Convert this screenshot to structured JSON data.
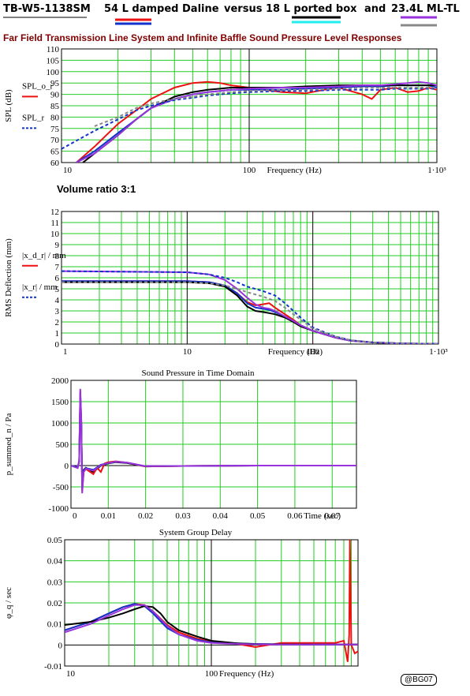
{
  "header": {
    "model": "TB-W5-1138SM",
    "legend": [
      {
        "label": "54 L damped Daline",
        "colors": [
          "#ee1111",
          "#1133cc"
        ]
      },
      {
        "label": "versus 18 L ported box",
        "colors": [
          "#000000",
          "#22eeee"
        ]
      },
      {
        "label": "and",
        "colors": []
      },
      {
        "label": "23.4L ML-TL",
        "colors": [
          "#9933dd",
          "#888888"
        ]
      }
    ]
  },
  "subtitle": "Far Field Transmission Line System and Infinite Baffle Sound Pressure Level Responses",
  "ratio_label": "Volume ratio 3:1",
  "credit": "@BG07",
  "chart_data": [
    {
      "type": "line",
      "name": "spl",
      "xscale": "log",
      "xlim": [
        10,
        1000
      ],
      "ylim": [
        60,
        110
      ],
      "xticks": [
        "10",
        "100",
        "1·10³"
      ],
      "yticks": [
        60,
        65,
        70,
        75,
        80,
        85,
        90,
        95,
        100,
        105,
        110
      ],
      "xlabel": "Frequency (Hz)",
      "ylabel": "SPL (dB)",
      "ylegend": [
        "SPL_o_r",
        "SPL_r"
      ],
      "series": [
        {
          "color": "#ee1111",
          "dash": "",
          "x": [
            12,
            15,
            20,
            25,
            30,
            40,
            50,
            60,
            70,
            80,
            100,
            120,
            150,
            200,
            250,
            300,
            400,
            450,
            500,
            600,
            700,
            800,
            900,
            1000
          ],
          "y": [
            60,
            67,
            77,
            83,
            88,
            93,
            95,
            95.5,
            95,
            94,
            93,
            92,
            91,
            90.5,
            92,
            93,
            90,
            88,
            92,
            93,
            91,
            91.5,
            93,
            92
          ]
        },
        {
          "color": "#1133cc",
          "dash": "",
          "x": [
            12,
            15,
            20,
            25,
            30,
            40,
            50,
            60,
            70,
            80,
            100,
            150,
            200,
            300,
            400,
            500,
            600,
            700,
            800,
            900,
            1000
          ],
          "y": [
            60,
            65,
            73,
            79,
            84,
            88,
            90,
            91,
            91.5,
            92,
            92,
            92,
            92.5,
            93,
            93.5,
            93.5,
            94,
            94,
            94,
            94,
            93
          ]
        },
        {
          "color": "#000000",
          "dash": "",
          "x": [
            13,
            15,
            20,
            25,
            30,
            40,
            50,
            60,
            70,
            80,
            100,
            150,
            200,
            300,
            400,
            500,
            600,
            700,
            800,
            900,
            1000
          ],
          "y": [
            60,
            64,
            72,
            79,
            84,
            89,
            91,
            92,
            92.5,
            93,
            93,
            93,
            93.5,
            94,
            94,
            94,
            94,
            94,
            94,
            94,
            94
          ]
        },
        {
          "color": "#9933dd",
          "dash": "",
          "x": [
            12,
            15,
            20,
            25,
            30,
            40,
            50,
            60,
            70,
            80,
            100,
            150,
            200,
            300,
            400,
            500,
            600,
            700,
            800,
            900,
            1000
          ],
          "y": [
            60,
            64,
            72,
            79,
            84,
            88,
            90,
            91,
            91.5,
            92,
            92.5,
            93,
            93,
            93.5,
            94,
            94,
            94.5,
            95,
            95.5,
            95,
            94
          ]
        },
        {
          "color": "#1133cc",
          "dash": "4,3",
          "x": [
            10,
            15,
            20,
            25,
            30,
            40,
            50,
            60,
            70,
            80,
            100,
            150,
            200,
            300,
            400,
            500,
            600,
            700,
            800,
            900,
            1000
          ],
          "y": [
            66,
            74,
            79,
            83,
            85,
            87.5,
            88.5,
            89.5,
            90,
            90.5,
            91,
            91.5,
            91.5,
            92,
            92,
            92,
            92.5,
            92.5,
            92.5,
            92.5,
            92.5
          ]
        },
        {
          "color": "#888888",
          "dash": "4,3",
          "x": [
            15,
            20,
            25,
            30,
            40,
            50,
            60,
            70,
            80,
            100,
            150,
            200,
            300,
            400,
            500,
            600,
            700,
            800,
            900,
            1000
          ],
          "y": [
            76,
            80,
            84,
            86,
            88,
            89,
            90,
            90.5,
            91,
            91.5,
            92,
            92,
            92.5,
            93,
            93,
            93,
            93,
            93,
            93,
            93
          ]
        }
      ]
    },
    {
      "type": "line",
      "name": "deflection",
      "xscale": "log",
      "xlim": [
        1,
        1000
      ],
      "ylim": [
        0,
        12
      ],
      "xticks": [
        "1",
        "10",
        "100",
        "1·10³"
      ],
      "yticks": [
        0,
        1,
        2,
        3,
        4,
        5,
        6,
        7,
        8,
        9,
        10,
        11,
        12
      ],
      "xlabel": "Frequency (Hz)",
      "ylabel": "RMS Deflection (mm)",
      "ylegend": [
        "|x_d_r| / mm",
        "|x_r| / mm"
      ],
      "series": [
        {
          "color": "#ee1111",
          "dash": "",
          "x": [
            1,
            10,
            15,
            20,
            25,
            30,
            35,
            40,
            45,
            50,
            60,
            70,
            80,
            100,
            150,
            200,
            300,
            500,
            1000
          ],
          "y": [
            5.7,
            5.7,
            5.6,
            5.3,
            4.6,
            3.8,
            3.5,
            3.6,
            3.7,
            3.3,
            2.7,
            2.2,
            1.7,
            1.2,
            0.6,
            0.3,
            0.15,
            0.05,
            0.02
          ]
        },
        {
          "color": "#1133cc",
          "dash": "",
          "x": [
            1,
            10,
            15,
            20,
            25,
            30,
            35,
            40,
            45,
            50,
            60,
            70,
            80,
            100,
            150,
            200,
            300,
            500,
            1000
          ],
          "y": [
            5.7,
            5.7,
            5.6,
            5.3,
            4.6,
            3.7,
            3.3,
            3.2,
            3.1,
            2.9,
            2.5,
            2.1,
            1.7,
            1.2,
            0.6,
            0.3,
            0.15,
            0.05,
            0.02
          ]
        },
        {
          "color": "#000000",
          "dash": "",
          "x": [
            1,
            10,
            15,
            20,
            25,
            30,
            35,
            40,
            45,
            50,
            60,
            70,
            80,
            100,
            150,
            200,
            300,
            500,
            1000
          ],
          "y": [
            5.6,
            5.6,
            5.5,
            5.2,
            4.4,
            3.4,
            3.0,
            2.9,
            2.8,
            2.7,
            2.4,
            2.0,
            1.6,
            1.2,
            0.6,
            0.3,
            0.15,
            0.05,
            0.02
          ]
        },
        {
          "color": "#9933dd",
          "dash": "",
          "x": [
            1,
            10,
            15,
            20,
            25,
            30,
            35,
            40,
            45,
            50,
            60,
            70,
            80,
            100,
            150,
            200,
            300,
            500,
            1000
          ],
          "y": [
            6.6,
            6.5,
            6.3,
            5.8,
            5.0,
            4.2,
            3.6,
            3.3,
            3.2,
            3.0,
            2.5,
            2.1,
            1.7,
            1.2,
            0.6,
            0.3,
            0.15,
            0.05,
            0.02
          ]
        },
        {
          "color": "#1133cc",
          "dash": "4,3",
          "x": [
            1,
            10,
            15,
            20,
            25,
            30,
            40,
            50,
            60,
            70,
            80,
            100,
            150,
            200,
            300,
            500,
            1000
          ],
          "y": [
            6.6,
            6.5,
            6.3,
            6.0,
            5.6,
            5.2,
            4.8,
            4.4,
            3.7,
            3.0,
            2.4,
            1.5,
            0.7,
            0.35,
            0.15,
            0.05,
            0.02
          ]
        },
        {
          "color": "#888888",
          "dash": "4,3",
          "x": [
            1,
            10,
            15,
            20,
            25,
            30,
            40,
            50,
            60,
            70,
            80,
            100,
            150,
            200,
            300,
            500,
            1000
          ],
          "y": [
            5.6,
            5.6,
            5.5,
            5.3,
            5.0,
            4.7,
            4.3,
            3.9,
            3.3,
            2.7,
            2.2,
            1.4,
            0.7,
            0.35,
            0.15,
            0.05,
            0.02
          ]
        }
      ]
    },
    {
      "type": "line",
      "name": "time",
      "title": "Sound Pressure in Time Domain",
      "xscale": "linear",
      "xlim": [
        0,
        0.0765
      ],
      "ylim": [
        -1000,
        2000
      ],
      "xticks": [
        "0",
        "0.01",
        "0.02",
        "0.03",
        "0.04",
        "0.05",
        "0.06",
        "0.07"
      ],
      "yticks": [
        -1000,
        -500,
        0,
        500,
        1000,
        1500,
        2000
      ],
      "xlabel": "Time (sec)",
      "ylabel": "p_summed_n / Pa",
      "series": [
        {
          "color": "#000000",
          "dash": "",
          "x": [
            0,
            0.0018,
            0.0022,
            0.0025,
            0.0028,
            0.003,
            0.0034,
            0.004,
            0.006,
            0.008,
            0.01,
            0.012,
            0.015,
            0.02,
            0.03,
            0.05,
            0.0765
          ],
          "y": [
            0,
            -50,
            100,
            1600,
            900,
            -500,
            -100,
            -50,
            -150,
            0,
            50,
            80,
            60,
            -20,
            -10,
            0,
            0
          ]
        },
        {
          "color": "#ee1111",
          "dash": "",
          "x": [
            0,
            0.0018,
            0.0022,
            0.0025,
            0.0028,
            0.003,
            0.0034,
            0.004,
            0.006,
            0.007,
            0.008,
            0.009,
            0.01,
            0.012,
            0.015,
            0.02,
            0.03,
            0.05,
            0.0765
          ],
          "y": [
            0,
            -50,
            100,
            1750,
            1000,
            -600,
            -150,
            -80,
            -200,
            -50,
            -150,
            50,
            80,
            100,
            70,
            -20,
            -10,
            0,
            0
          ]
        },
        {
          "color": "#1133cc",
          "dash": "",
          "x": [
            0,
            0.0018,
            0.0022,
            0.0025,
            0.0028,
            0.003,
            0.0034,
            0.004,
            0.006,
            0.008,
            0.01,
            0.012,
            0.015,
            0.02,
            0.03,
            0.05,
            0.0765
          ],
          "y": [
            0,
            -40,
            100,
            1700,
            950,
            -550,
            -120,
            -60,
            -100,
            20,
            60,
            90,
            70,
            -15,
            -10,
            0,
            0
          ]
        },
        {
          "color": "#9933dd",
          "dash": "",
          "x": [
            0,
            0.0018,
            0.0022,
            0.0025,
            0.0028,
            0.003,
            0.0034,
            0.004,
            0.006,
            0.008,
            0.01,
            0.012,
            0.015,
            0.02,
            0.03,
            0.05,
            0.0765
          ],
          "y": [
            0,
            -60,
            120,
            1800,
            1000,
            -650,
            -150,
            -70,
            -120,
            10,
            60,
            90,
            70,
            -15,
            -10,
            0,
            0
          ]
        }
      ]
    },
    {
      "type": "line",
      "name": "delay",
      "title": "System Group Delay",
      "xscale": "log",
      "xlim": [
        10,
        1000
      ],
      "ylim": [
        -0.01,
        0.05
      ],
      "xticks": [
        "10",
        "100"
      ],
      "yticks": [
        -0.01,
        0,
        0.01,
        0.02,
        0.03,
        0.04,
        0.05
      ],
      "xlabel": "Frequency (Hz)",
      "ylabel": "φ_q / sec",
      "series": [
        {
          "color": "#ee1111",
          "dash": "",
          "x": [
            10,
            15,
            20,
            25,
            30,
            35,
            40,
            50,
            60,
            80,
            100,
            150,
            200,
            300,
            500,
            700,
            800,
            850,
            870,
            880,
            900,
            950,
            1000
          ],
          "y": [
            0.007,
            0.011,
            0.015,
            0.018,
            0.0195,
            0.019,
            0.016,
            0.0095,
            0.006,
            0.003,
            0.0015,
            0.0005,
            -0.001,
            0.001,
            0.001,
            0.001,
            0.002,
            -0.008,
            0.005,
            0.05,
            0.0,
            -0.004,
            -0.003
          ]
        },
        {
          "color": "#1133cc",
          "dash": "",
          "x": [
            10,
            15,
            20,
            25,
            30,
            35,
            40,
            50,
            60,
            80,
            100,
            150,
            200,
            300,
            500,
            700,
            800,
            1000
          ],
          "y": [
            0.007,
            0.011,
            0.015,
            0.018,
            0.0195,
            0.0185,
            0.015,
            0.008,
            0.005,
            0.0025,
            0.0012,
            0.0008,
            0.0005,
            0.0003,
            0.0002,
            0.0002,
            0.0002,
            0.0002
          ]
        },
        {
          "color": "#000000",
          "dash": "",
          "x": [
            10,
            15,
            20,
            25,
            30,
            35,
            40,
            45,
            50,
            60,
            80,
            100,
            150,
            200,
            300,
            500,
            700,
            800,
            1000
          ],
          "y": [
            0.0095,
            0.011,
            0.013,
            0.015,
            0.017,
            0.0185,
            0.018,
            0.015,
            0.011,
            0.007,
            0.004,
            0.002,
            0.0008,
            0.0004,
            0.0003,
            0.0002,
            0.0002,
            0.0002,
            0.0002
          ]
        },
        {
          "color": "#9933dd",
          "dash": "",
          "x": [
            10,
            15,
            20,
            25,
            30,
            35,
            40,
            50,
            60,
            80,
            100,
            150,
            200,
            300,
            500,
            700,
            800,
            1000
          ],
          "y": [
            0.006,
            0.01,
            0.014,
            0.017,
            0.019,
            0.019,
            0.016,
            0.009,
            0.005,
            0.002,
            0.001,
            0.0005,
            0.0003,
            0.0002,
            0.0002,
            0.0002,
            0.0002,
            0.0002
          ]
        }
      ]
    }
  ]
}
